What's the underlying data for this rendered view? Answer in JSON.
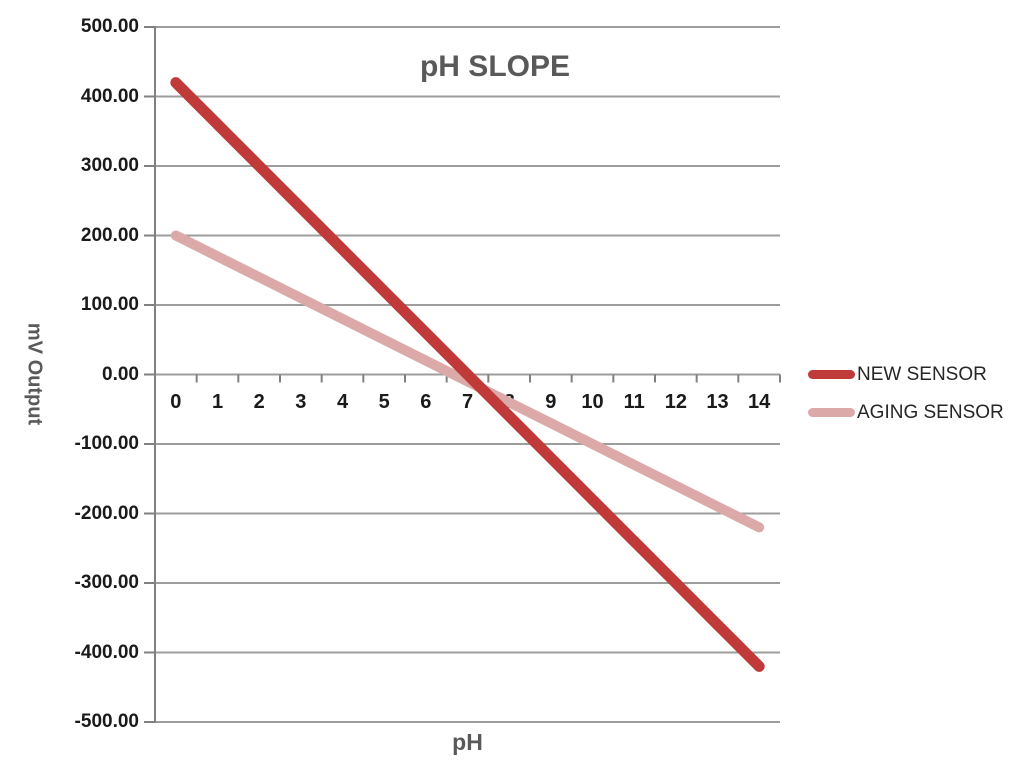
{
  "chart_data": {
    "type": "line",
    "title": "pH SLOPE",
    "xlabel": "pH",
    "ylabel": "mV Output",
    "x": [
      0,
      1,
      2,
      3,
      4,
      5,
      6,
      7,
      8,
      9,
      10,
      11,
      12,
      13,
      14
    ],
    "x_tick_labels": [
      "0",
      "1",
      "2",
      "3",
      "4",
      "5",
      "6",
      "7",
      "8",
      "9",
      "10",
      "11",
      "12",
      "13",
      "14"
    ],
    "series": [
      {
        "name": "NEW SENSOR",
        "color": "#c13a3a",
        "stroke_width": 11,
        "values": [
          420,
          360,
          300,
          240,
          180,
          120,
          60,
          0,
          -60,
          -120,
          -180,
          -240,
          -300,
          -360,
          -420
        ]
      },
      {
        "name": "AGING SENSOR",
        "color": "#dba9a7",
        "stroke_width": 10,
        "values": [
          200,
          170,
          140,
          110,
          80,
          50,
          20,
          -10,
          -40,
          -70,
          -100,
          -130,
          -160,
          -190,
          -220
        ]
      }
    ],
    "ylim": [
      -500,
      500
    ],
    "y_ticks": [
      {
        "value": 500,
        "label": "500.00"
      },
      {
        "value": 400,
        "label": "400.00"
      },
      {
        "value": 300,
        "label": "300.00"
      },
      {
        "value": 200,
        "label": "200.00"
      },
      {
        "value": 100,
        "label": "100.00"
      },
      {
        "value": 0,
        "label": "0.00"
      },
      {
        "value": -100,
        "label": "-100.00"
      },
      {
        "value": -200,
        "label": "-200.00"
      },
      {
        "value": -300,
        "label": "-300.00"
      },
      {
        "value": -400,
        "label": "-400.00"
      },
      {
        "value": -500,
        "label": "-500.00"
      }
    ],
    "grid": true,
    "legend_position": "right"
  },
  "colors": {
    "grid": "#9d9d9d",
    "axis": "#808080",
    "title_text": "#595959",
    "tick_text": "#1a1a1a",
    "legend_text": "#262626",
    "background": "#ffffff"
  }
}
